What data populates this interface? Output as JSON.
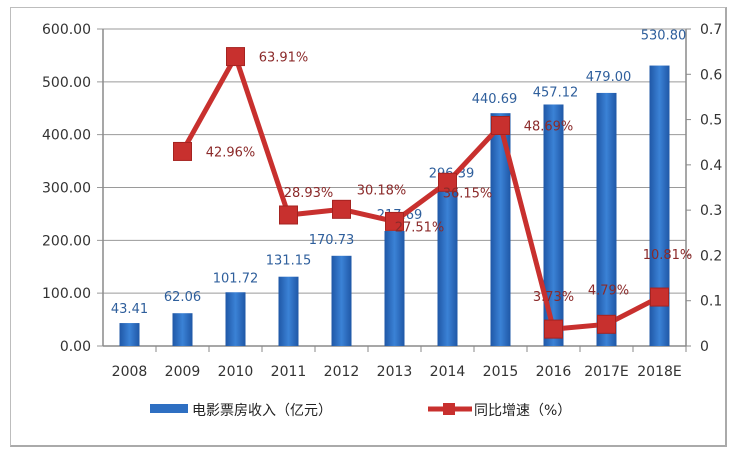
{
  "chart_data": {
    "type": "bar+line",
    "title": "",
    "categories": [
      "2008",
      "2009",
      "2010",
      "2011",
      "2012",
      "2013",
      "2014",
      "2015",
      "2016",
      "2017E",
      "2018E"
    ],
    "series": [
      {
        "name": "电影票房收入（亿元）",
        "type": "bar",
        "axis": "left",
        "color": "#2e6fc2",
        "values": [
          43.41,
          62.06,
          101.72,
          131.15,
          170.73,
          217.69,
          296.39,
          440.69,
          457.12,
          479.0,
          530.8
        ],
        "labels": [
          "43.41",
          "62.06",
          "101.72",
          "131.15",
          "170.73",
          "217.69",
          "296.39",
          "440.69",
          "457.12",
          "479.00",
          "530.80"
        ]
      },
      {
        "name": "同比增速（%）",
        "type": "line",
        "axis": "right",
        "color": "#c8302e",
        "values": [
          null,
          0.4296,
          0.6391,
          0.2893,
          0.3018,
          0.2751,
          0.3615,
          0.4869,
          0.0373,
          0.0479,
          0.1081
        ],
        "labels": [
          "",
          "42.96%",
          "63.91%",
          "28.93%",
          "30.18%",
          "27.51%",
          "36.15%",
          "48.69%",
          "3.73%",
          "4.79%",
          "10.81%"
        ]
      }
    ],
    "left_axis": {
      "min": 0,
      "max": 600,
      "ticks": [
        "0.00",
        "100.00",
        "200.00",
        "300.00",
        "400.00",
        "500.00",
        "600.00"
      ]
    },
    "right_axis": {
      "min": 0,
      "max": 0.7,
      "ticks": [
        "0",
        "0.1",
        "0.2",
        "0.3",
        "0.4",
        "0.5",
        "0.6",
        "0.7"
      ]
    },
    "xlabel": "",
    "ylabel": "",
    "grid": true,
    "legend_position": "bottom"
  },
  "legend": {
    "bar_label": "电影票房收入（亿元）",
    "line_label": "同比增速（%）"
  }
}
